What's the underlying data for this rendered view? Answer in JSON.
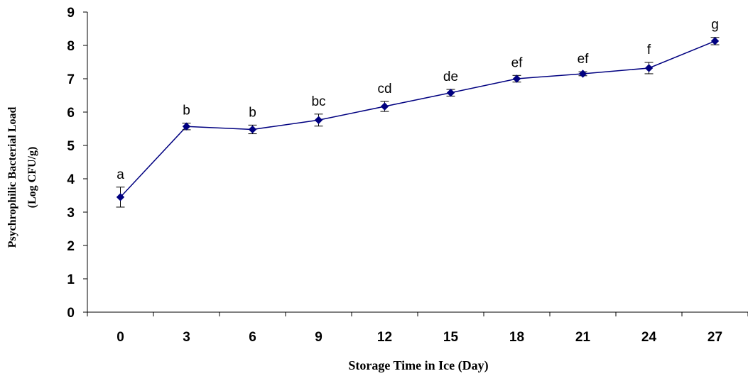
{
  "chart_data": {
    "type": "line",
    "title": "",
    "xlabel": "Storage Time in Ice (Day)",
    "ylabel_lines": [
      "Psychrophilic Bacterial Load",
      "(Log CFU/g)"
    ],
    "x": [
      0,
      3,
      6,
      9,
      12,
      15,
      18,
      21,
      24,
      27
    ],
    "ylim": [
      0,
      9
    ],
    "y_ticks": [
      0,
      1,
      2,
      3,
      4,
      5,
      6,
      7,
      8,
      9
    ],
    "grid": false,
    "legend": "none",
    "series": [
      {
        "values": [
          3.45,
          5.57,
          5.48,
          5.76,
          6.17,
          6.58,
          7.0,
          7.15,
          7.32,
          8.13
        ],
        "error": [
          0.3,
          0.1,
          0.13,
          0.18,
          0.15,
          0.1,
          0.1,
          0.06,
          0.17,
          0.11
        ],
        "labels": [
          "a",
          "b",
          "b",
          "bc",
          "cd",
          "de",
          "ef",
          "ef",
          "f",
          "g"
        ],
        "color": "#000080"
      }
    ]
  }
}
